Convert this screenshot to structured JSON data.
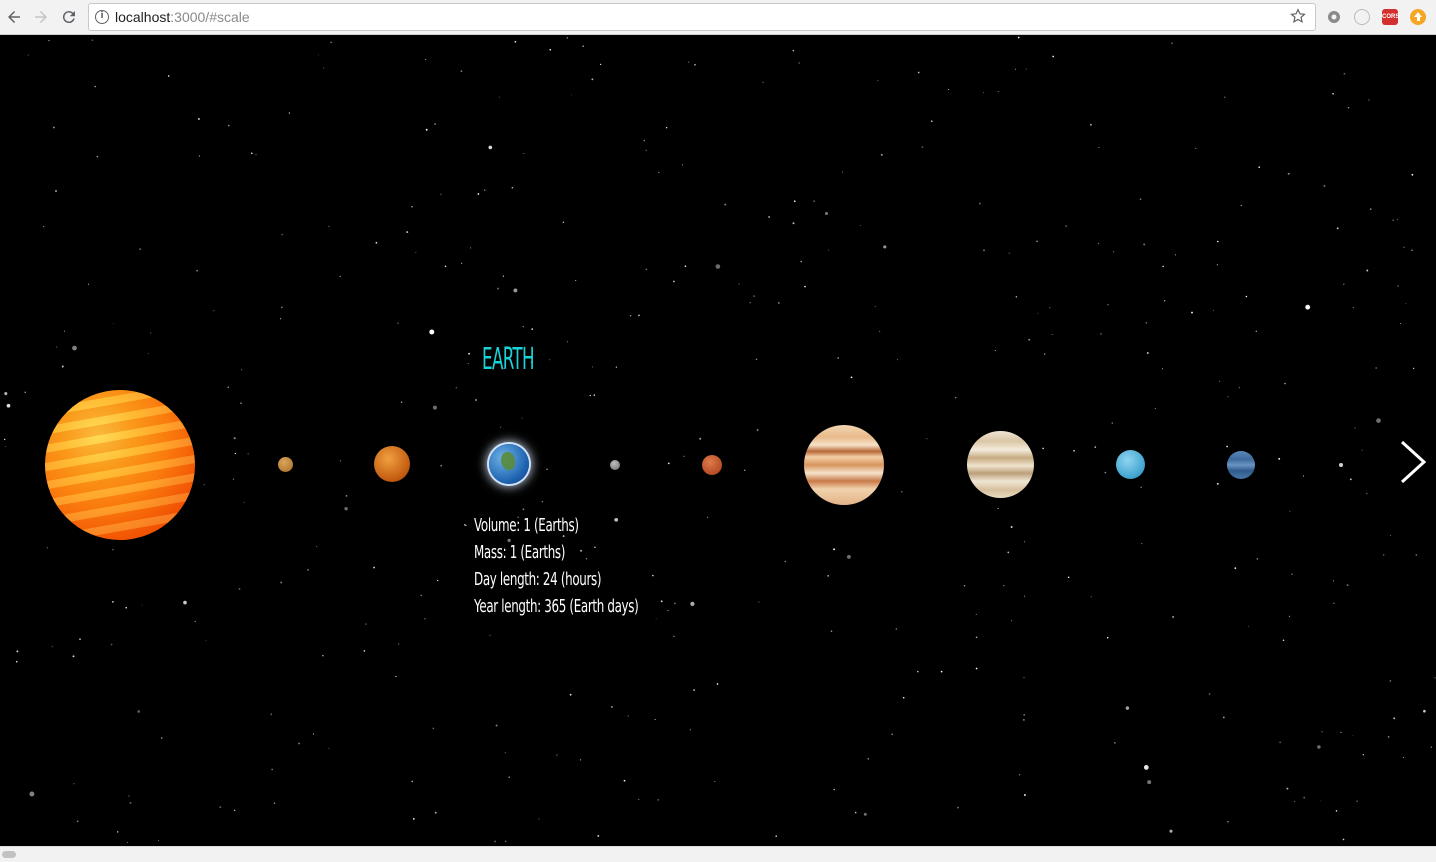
{
  "browser": {
    "url_host": "localhost",
    "url_path": ":3000/#scale",
    "icons": {
      "back": "arrow-left-icon",
      "forward": "arrow-right-icon",
      "reload": "reload-icon",
      "info": "info-icon",
      "bookmark": "star-icon"
    },
    "extensions": [
      {
        "name": "gear-extension-icon"
      },
      {
        "name": "circle-extension-icon"
      },
      {
        "name": "cors-extension-icon",
        "label": "CORS"
      },
      {
        "name": "upload-extension-icon"
      }
    ]
  },
  "scene": {
    "background": "#000000",
    "bodies": [
      "sun",
      "mercury",
      "venus",
      "earth",
      "moon",
      "mars",
      "jupiter",
      "saturn",
      "uranus",
      "neptune",
      "pluto"
    ],
    "selected": "earth"
  },
  "selected_planet": {
    "name": "EARTH",
    "title_color": "#19d3d6",
    "volume": "Volume: 1 (Earths)",
    "mass": "Mass: 1 (Earths)",
    "day_length": "Day length: 24 (hours)",
    "year_length": "Year length: 365 (Earth days)"
  },
  "navigation": {
    "next_icon": "chevron-right-icon"
  }
}
